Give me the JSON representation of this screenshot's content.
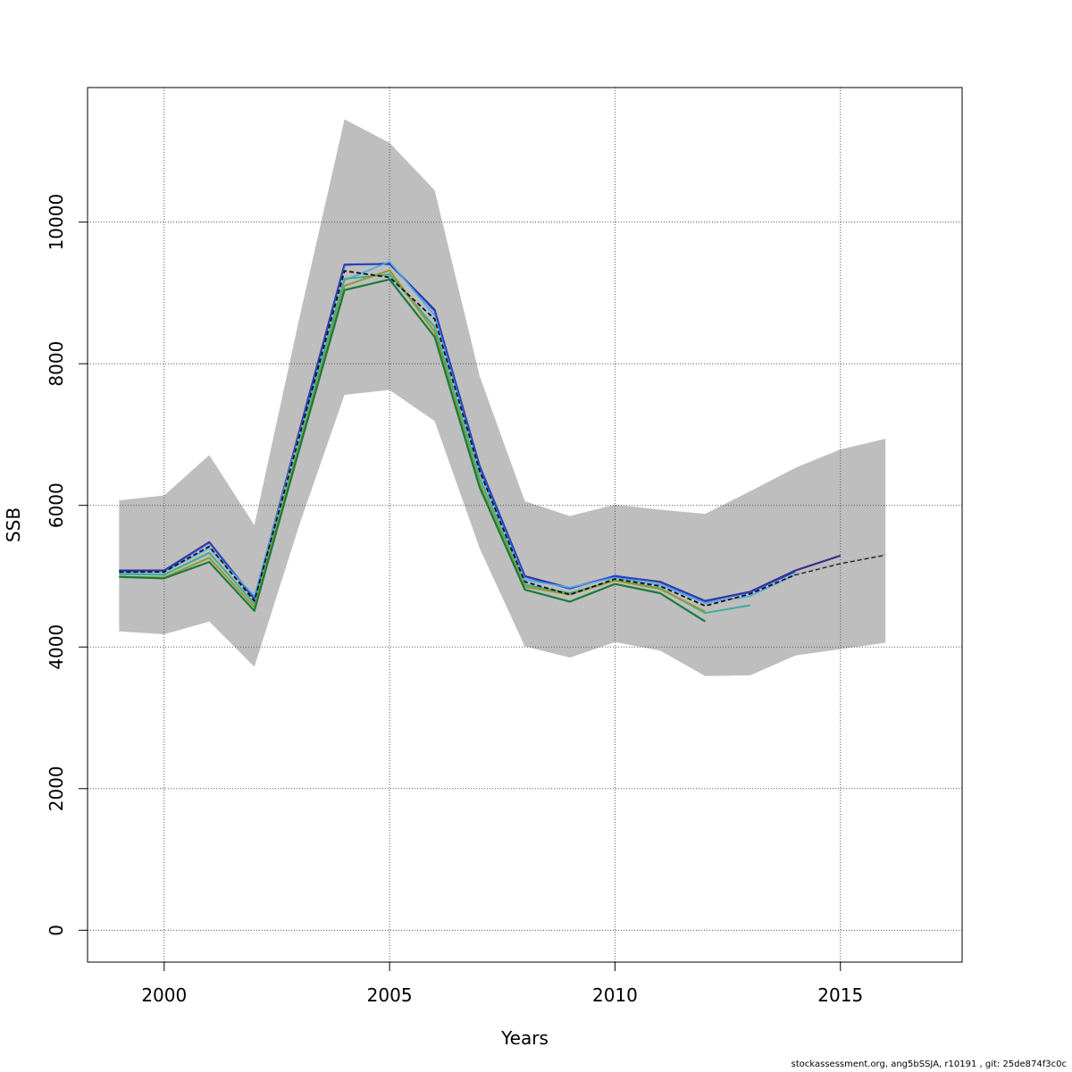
{
  "chart_data": {
    "type": "line",
    "title": "",
    "xlabel": "Years",
    "ylabel": "SSB",
    "xlim": [
      1998.3,
      2017.7
    ],
    "ylim": [
      -450,
      11900
    ],
    "x_ticks": [
      2000,
      2005,
      2010,
      2015
    ],
    "y_ticks": [
      0,
      2000,
      4000,
      6000,
      8000,
      10000
    ],
    "x_tick_labels": [
      "2000",
      "2005",
      "2010",
      "2015"
    ],
    "y_tick_labels": [
      "0",
      "2000",
      "4000",
      "6000",
      "8000",
      "10000"
    ],
    "grid": true,
    "legend": "none",
    "band": {
      "color": "#bebebe",
      "x": [
        1999,
        2000,
        2001,
        2002,
        2003,
        2004,
        2005,
        2006,
        2007,
        2008,
        2009,
        2010,
        2011,
        2012,
        2013,
        2014,
        2015,
        2016
      ],
      "upper": [
        6070,
        6140,
        6710,
        5720,
        8650,
        11450,
        11120,
        10450,
        7820,
        6060,
        5850,
        6010,
        5940,
        5880,
        6200,
        6530,
        6790,
        6940
      ],
      "lower": [
        4220,
        4180,
        4360,
        3720,
        5730,
        7560,
        7630,
        7190,
        5390,
        4010,
        3850,
        4070,
        3950,
        3590,
        3600,
        3880,
        3970,
        4060
      ]
    },
    "series": [
      {
        "color": "#3b2a8c",
        "width": 2.2,
        "dash": "",
        "x": [
          1999,
          2000,
          2001,
          2002,
          2003,
          2004,
          2005,
          2006,
          2007,
          2008,
          2009,
          2010,
          2011,
          2012,
          2013,
          2014,
          2015
        ],
        "values": [
          5080,
          5080,
          5480,
          4680,
          7050,
          9400,
          9410,
          8760,
          6550,
          5000,
          4830,
          5000,
          4920,
          4650,
          4780,
          5080,
          5290
        ]
      },
      {
        "color": "#1f4fd6",
        "width": 1.4,
        "dash": "",
        "x": [
          1999,
          2000,
          2001,
          2002,
          2003,
          2004,
          2005,
          2006,
          2007,
          2008,
          2009,
          2010,
          2011,
          2012,
          2013,
          2014
        ],
        "values": [
          5070,
          5070,
          5470,
          4690,
          7030,
          9390,
          9420,
          8740,
          6540,
          4990,
          4820,
          5010,
          4910,
          4640,
          4770,
          5060
        ]
      },
      {
        "color": "#4aa9e8",
        "width": 1.6,
        "dash": "",
        "x": [
          1999,
          2000,
          2001,
          2002,
          2003,
          2004,
          2005,
          2006,
          2007,
          2008,
          2009,
          2010,
          2011,
          2012,
          2013,
          2014
        ],
        "values": [
          5050,
          5060,
          5400,
          4720,
          7000,
          9180,
          9440,
          8680,
          6480,
          4950,
          4840,
          4980,
          4880,
          4620,
          4720,
          5020
        ]
      },
      {
        "color": "#3aae98",
        "width": 2.0,
        "dash": "",
        "x": [
          1999,
          2000,
          2001,
          2002,
          2003,
          2004,
          2005,
          2006,
          2007,
          2008,
          2009,
          2010,
          2011,
          2012,
          2013
        ],
        "values": [
          5030,
          5020,
          5330,
          4610,
          6880,
          9200,
          9260,
          8520,
          6380,
          4880,
          4760,
          4940,
          4830,
          4480,
          4590
        ]
      },
      {
        "color": "#8f9a2c",
        "width": 2.0,
        "dash": "",
        "x": [
          1999,
          2000,
          2001,
          2002,
          2003,
          2004,
          2005,
          2006,
          2007,
          2008,
          2009,
          2010,
          2011,
          2012
        ],
        "values": [
          4990,
          4980,
          5260,
          4560,
          6840,
          9100,
          9320,
          8450,
          6300,
          4850,
          4740,
          4940,
          4820,
          4500
        ]
      },
      {
        "color": "#1a7a3a",
        "width": 2.2,
        "dash": "",
        "x": [
          1999,
          2000,
          2001,
          2002,
          2003,
          2004,
          2005,
          2006,
          2007,
          2008,
          2009,
          2010,
          2011,
          2012
        ],
        "values": [
          4990,
          4970,
          5200,
          4510,
          6800,
          9040,
          9190,
          8380,
          6250,
          4810,
          4640,
          4890,
          4760,
          4360
        ]
      },
      {
        "color": "#111111",
        "width": 1.8,
        "dash": "5,3",
        "x": [
          1999,
          2000,
          2001,
          2002,
          2003,
          2004,
          2005,
          2006,
          2007,
          2008,
          2009,
          2010,
          2011,
          2012,
          2013,
          2014,
          2015,
          2016
        ],
        "values": [
          5060,
          5060,
          5420,
          4650,
          6980,
          9310,
          9220,
          8630,
          6480,
          4920,
          4740,
          4960,
          4860,
          4580,
          4750,
          5020,
          5180,
          5300
        ]
      },
      {
        "color": "#aaaaaa",
        "width": 1.0,
        "dash": "",
        "x": [
          2014,
          2015,
          2016
        ],
        "values": [
          5030,
          5190,
          5310
        ]
      }
    ]
  },
  "footer": "stockassessment.org, ang5bSSJA, r10191 , git: 25de874f3c0c"
}
